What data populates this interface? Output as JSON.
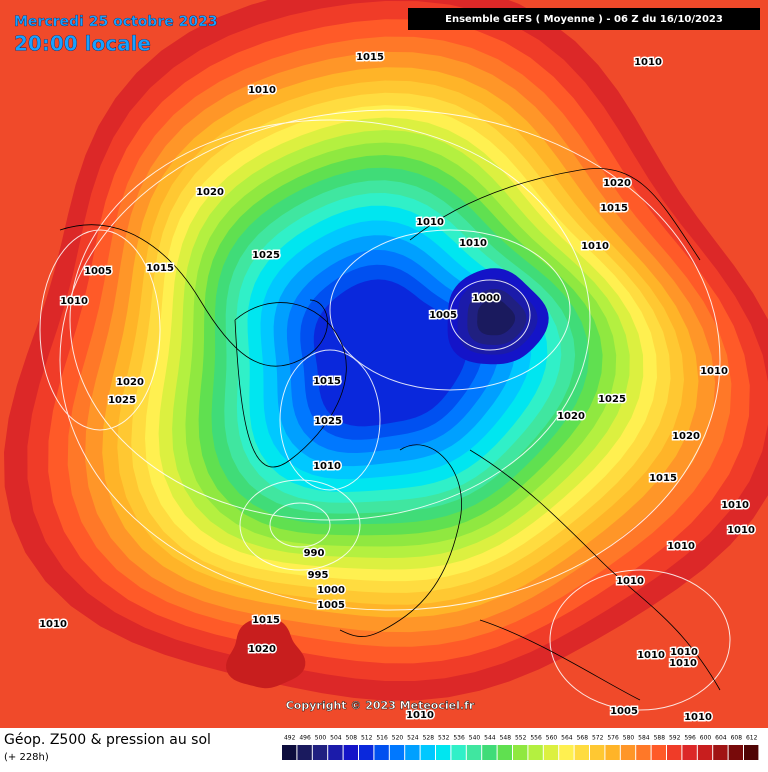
{
  "header": {
    "date": "Mercredi 25 octobre 2023",
    "time": "20:00 locale",
    "model": "Ensemble GEFS  ( Moyenne )  -  06 Z du 16/10/2023"
  },
  "isobar_labels": [
    "1015",
    "1010",
    "1010",
    "1020",
    "1015",
    "1020",
    "1010",
    "1010",
    "1010",
    "1025",
    "1005",
    "1015",
    "1010",
    "1000",
    "1005",
    "1010",
    "1020",
    "1015",
    "1025",
    "1025",
    "1020",
    "1025",
    "1020",
    "1010",
    "1015",
    "1010",
    "1010",
    "1010",
    "990",
    "995",
    "1010",
    "1000",
    "1005",
    "1015",
    "1010",
    "1020",
    "1010",
    "1010",
    "1010",
    "1010",
    "1005",
    "1010"
  ],
  "footer": {
    "title": "Géop. Z500 & pression au sol",
    "lead": "(+ 228h)",
    "copyright": "Copyright © 2023 Meteociel.fr"
  },
  "legend": {
    "labels": [
      492,
      496,
      500,
      504,
      508,
      512,
      516,
      520,
      524,
      528,
      532,
      536,
      540,
      544,
      548,
      552,
      556,
      560,
      564,
      568,
      572,
      576,
      580,
      584,
      588,
      592,
      596,
      600,
      604,
      608,
      612
    ],
    "colors": [
      "#0d0d3d",
      "#1a1a5e",
      "#202080",
      "#1b1baa",
      "#1414c8",
      "#0a28dc",
      "#0050f0",
      "#0078ff",
      "#00a0ff",
      "#00c8ff",
      "#00e6f0",
      "#30f0c8",
      "#40e6a0",
      "#40dc78",
      "#60e050",
      "#90e840",
      "#b4f040",
      "#dcf040",
      "#fff050",
      "#ffdc40",
      "#ffc832",
      "#ffb428",
      "#ff9628",
      "#ff7828",
      "#ff5a28",
      "#f03c28",
      "#dc2828",
      "#c81e1e",
      "#a01414",
      "#780a0a",
      "#500505"
    ]
  }
}
